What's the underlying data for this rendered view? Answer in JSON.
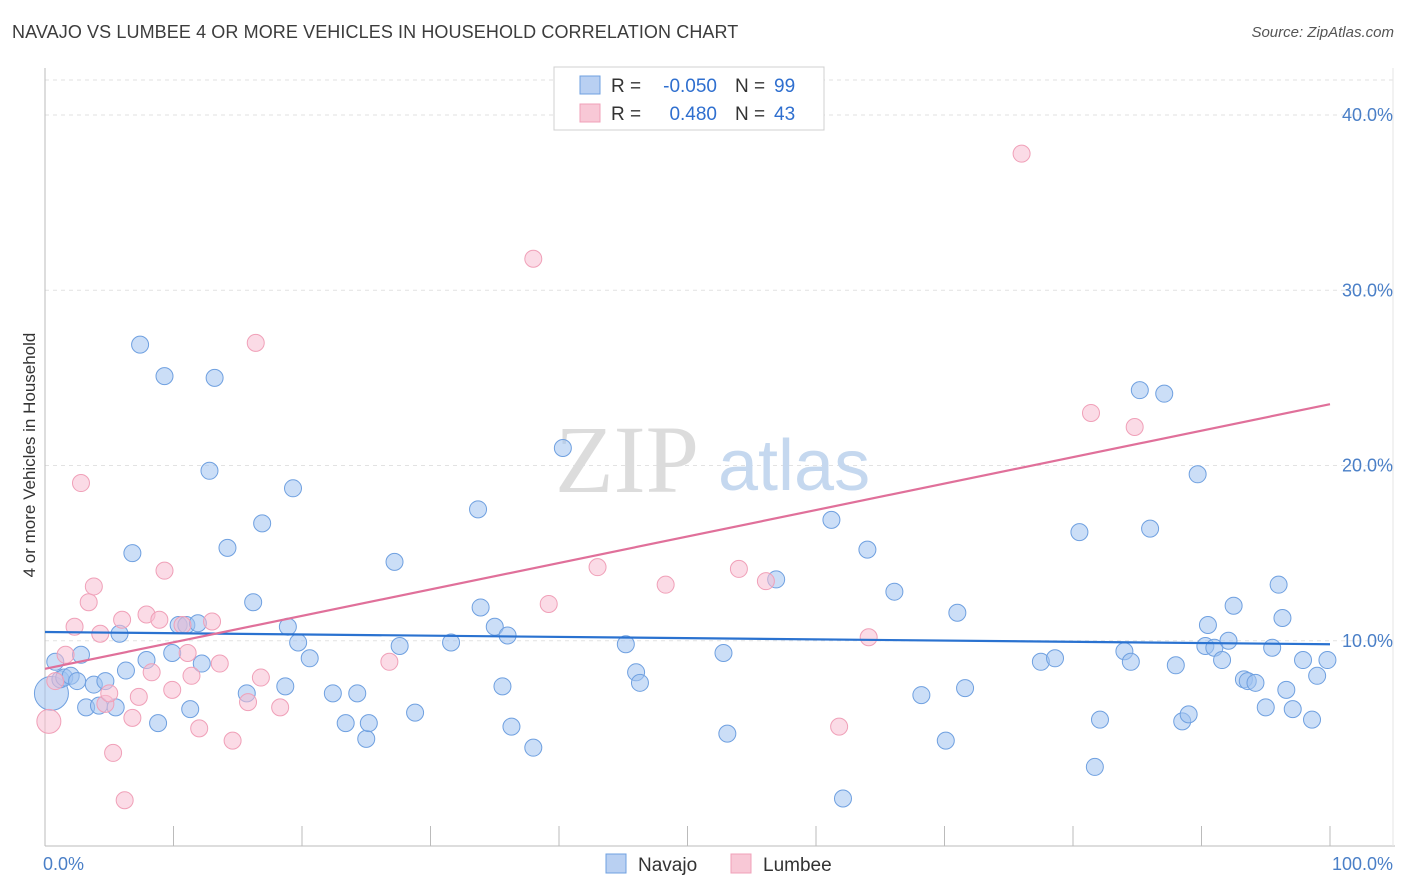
{
  "title": "NAVAJO VS LUMBEE 4 OR MORE VEHICLES IN HOUSEHOLD CORRELATION CHART",
  "source": "Source: ZipAtlas.com",
  "watermark": {
    "zip": "ZIP",
    "atlas": "atlas"
  },
  "legend": {
    "r_label": "R =",
    "n_label": "N =",
    "rows": [
      {
        "r": "-0.050",
        "n": "99"
      },
      {
        "r": "0.480",
        "n": "43"
      }
    ]
  },
  "chart_data": {
    "type": "scatter",
    "title": "NAVAJO VS LUMBEE 4 OR MORE VEHICLES IN HOUSEHOLD CORRELATION CHART",
    "ylabel": "4 or more Vehicles in Household",
    "xlabel": "",
    "xlim": [
      0,
      100
    ],
    "ylim": [
      0,
      42
    ],
    "x_tick_labels": [
      "0.0%",
      "100.0%"
    ],
    "y_ticks": [
      10,
      20,
      30,
      40
    ],
    "y_tick_labels": [
      "10.0%",
      "20.0%",
      "30.0%",
      "40.0%"
    ],
    "grid": true,
    "colors": {
      "navajo": "#6fa0e0",
      "lumbee": "#f0a0b8",
      "navajo_line": "#2a72d0",
      "lumbee_line": "#e0709a",
      "axis_text": "#4a7fc7"
    },
    "series": [
      {
        "name": "Navajo",
        "r": -0.05,
        "n": 99,
        "trend": {
          "x0": 0,
          "y0": 10.5,
          "x1": 100,
          "y1": 9.8
        },
        "points": [
          [
            0.5,
            7.0
          ],
          [
            0.8,
            8.8
          ],
          [
            1.2,
            7.8
          ],
          [
            1.5,
            7.9
          ],
          [
            2.0,
            8.0
          ],
          [
            2.5,
            7.7
          ],
          [
            2.8,
            9.2
          ],
          [
            3.2,
            6.2
          ],
          [
            3.8,
            7.5
          ],
          [
            4.2,
            6.3
          ],
          [
            4.7,
            7.7
          ],
          [
            5.5,
            6.2
          ],
          [
            5.8,
            10.4
          ],
          [
            6.3,
            8.3
          ],
          [
            6.8,
            15.0
          ],
          [
            7.4,
            26.9
          ],
          [
            7.9,
            8.9
          ],
          [
            8.8,
            5.3
          ],
          [
            9.3,
            25.1
          ],
          [
            9.9,
            9.3
          ],
          [
            10.4,
            10.9
          ],
          [
            11.0,
            10.9
          ],
          [
            11.3,
            6.1
          ],
          [
            11.9,
            11.0
          ],
          [
            12.2,
            8.7
          ],
          [
            12.8,
            19.7
          ],
          [
            13.2,
            25.0
          ],
          [
            14.2,
            15.3
          ],
          [
            15.7,
            7.0
          ],
          [
            16.2,
            12.2
          ],
          [
            16.9,
            16.7
          ],
          [
            18.7,
            7.4
          ],
          [
            18.9,
            10.8
          ],
          [
            19.3,
            18.7
          ],
          [
            19.7,
            9.9
          ],
          [
            20.6,
            9.0
          ],
          [
            22.4,
            7.0
          ],
          [
            23.4,
            5.3
          ],
          [
            24.3,
            7.0
          ],
          [
            25.0,
            4.4
          ],
          [
            25.2,
            5.3
          ],
          [
            27.2,
            14.5
          ],
          [
            27.6,
            9.7
          ],
          [
            28.8,
            5.9
          ],
          [
            31.6,
            9.9
          ],
          [
            33.7,
            17.5
          ],
          [
            33.9,
            11.9
          ],
          [
            35.0,
            10.8
          ],
          [
            35.6,
            7.4
          ],
          [
            36.0,
            10.3
          ],
          [
            36.3,
            5.1
          ],
          [
            38.0,
            3.9
          ],
          [
            40.3,
            21.0
          ],
          [
            45.2,
            9.8
          ],
          [
            46.0,
            8.2
          ],
          [
            46.3,
            7.6
          ],
          [
            52.8,
            9.3
          ],
          [
            53.1,
            4.7
          ],
          [
            56.9,
            13.5
          ],
          [
            61.2,
            16.9
          ],
          [
            62.1,
            1.0
          ],
          [
            64.0,
            15.2
          ],
          [
            66.1,
            12.8
          ],
          [
            68.2,
            6.9
          ],
          [
            70.1,
            4.3
          ],
          [
            71.0,
            11.6
          ],
          [
            71.6,
            7.3
          ],
          [
            77.5,
            8.8
          ],
          [
            78.6,
            9.0
          ],
          [
            80.5,
            16.2
          ],
          [
            81.7,
            2.8
          ],
          [
            82.1,
            5.5
          ],
          [
            84.0,
            9.4
          ],
          [
            84.5,
            8.8
          ],
          [
            85.2,
            24.3
          ],
          [
            86.0,
            16.4
          ],
          [
            87.1,
            24.1
          ],
          [
            88.0,
            8.6
          ],
          [
            88.5,
            5.4
          ],
          [
            89.0,
            5.8
          ],
          [
            89.7,
            19.5
          ],
          [
            90.3,
            9.7
          ],
          [
            90.5,
            10.9
          ],
          [
            91.0,
            9.6
          ],
          [
            91.6,
            8.9
          ],
          [
            92.1,
            10.0
          ],
          [
            92.5,
            12.0
          ],
          [
            93.3,
            7.8
          ],
          [
            93.6,
            7.7
          ],
          [
            94.2,
            7.6
          ],
          [
            95.0,
            6.2
          ],
          [
            95.5,
            9.6
          ],
          [
            96.0,
            13.2
          ],
          [
            96.3,
            11.3
          ],
          [
            96.6,
            7.2
          ],
          [
            97.1,
            6.1
          ],
          [
            97.9,
            8.9
          ],
          [
            98.6,
            5.5
          ],
          [
            99.0,
            8.0
          ],
          [
            99.8,
            8.9
          ]
        ]
      },
      {
        "name": "Lumbee",
        "r": 0.48,
        "n": 43,
        "trend": {
          "x0": 0,
          "y0": 8.4,
          "x1": 100,
          "y1": 23.5
        },
        "points": [
          [
            0.3,
            5.4
          ],
          [
            0.8,
            7.7
          ],
          [
            1.6,
            9.2
          ],
          [
            2.3,
            10.8
          ],
          [
            2.8,
            19.0
          ],
          [
            3.4,
            12.2
          ],
          [
            3.8,
            13.1
          ],
          [
            4.3,
            10.4
          ],
          [
            4.7,
            6.4
          ],
          [
            5.0,
            7.0
          ],
          [
            5.3,
            3.6
          ],
          [
            6.0,
            11.2
          ],
          [
            6.8,
            5.6
          ],
          [
            7.3,
            6.8
          ],
          [
            7.9,
            11.5
          ],
          [
            8.3,
            8.2
          ],
          [
            8.9,
            11.2
          ],
          [
            9.3,
            14.0
          ],
          [
            9.9,
            7.2
          ],
          [
            10.7,
            10.9
          ],
          [
            11.1,
            9.3
          ],
          [
            11.4,
            8.0
          ],
          [
            12.0,
            5.0
          ],
          [
            13.0,
            11.1
          ],
          [
            13.6,
            8.7
          ],
          [
            14.6,
            4.3
          ],
          [
            15.8,
            6.5
          ],
          [
            16.4,
            27.0
          ],
          [
            16.8,
            7.9
          ],
          [
            18.3,
            6.2
          ],
          [
            26.8,
            8.8
          ],
          [
            38.0,
            31.8
          ],
          [
            39.2,
            12.1
          ],
          [
            43.0,
            14.2
          ],
          [
            48.3,
            13.2
          ],
          [
            54.0,
            14.1
          ],
          [
            56.1,
            13.4
          ],
          [
            61.8,
            5.1
          ],
          [
            64.1,
            10.2
          ],
          [
            76.0,
            37.8
          ],
          [
            81.4,
            23.0
          ],
          [
            84.8,
            22.2
          ],
          [
            6.2,
            0.9
          ]
        ]
      }
    ]
  },
  "bottom_legend": [
    {
      "label": "Navajo"
    },
    {
      "label": "Lumbee"
    }
  ]
}
